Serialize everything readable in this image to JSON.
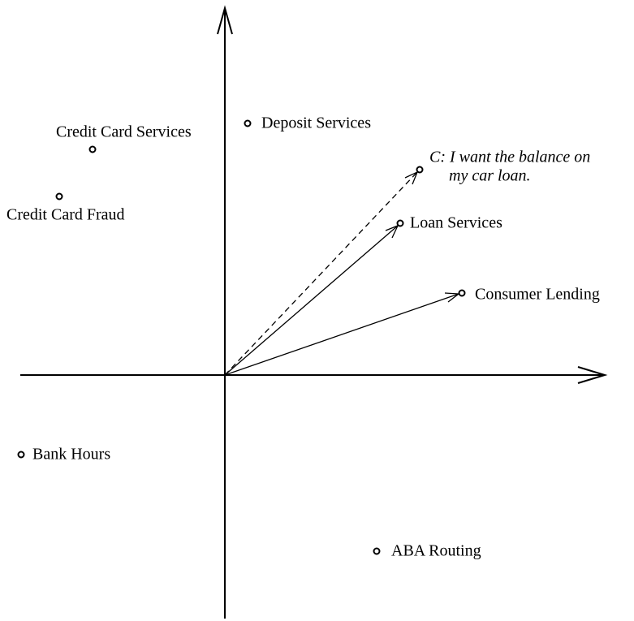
{
  "nodes": [
    {
      "label": "Deposit Services"
    },
    {
      "label": "Credit Card Services"
    },
    {
      "label": "Credit Card Fraud"
    },
    {
      "label": "Loan Services"
    },
    {
      "label": "Consumer Lending"
    },
    {
      "label": "Bank Hours"
    },
    {
      "label": "ABA Routing"
    }
  ],
  "query": {
    "lines": [
      "C: I want the balance on",
      "my car loan."
    ]
  }
}
